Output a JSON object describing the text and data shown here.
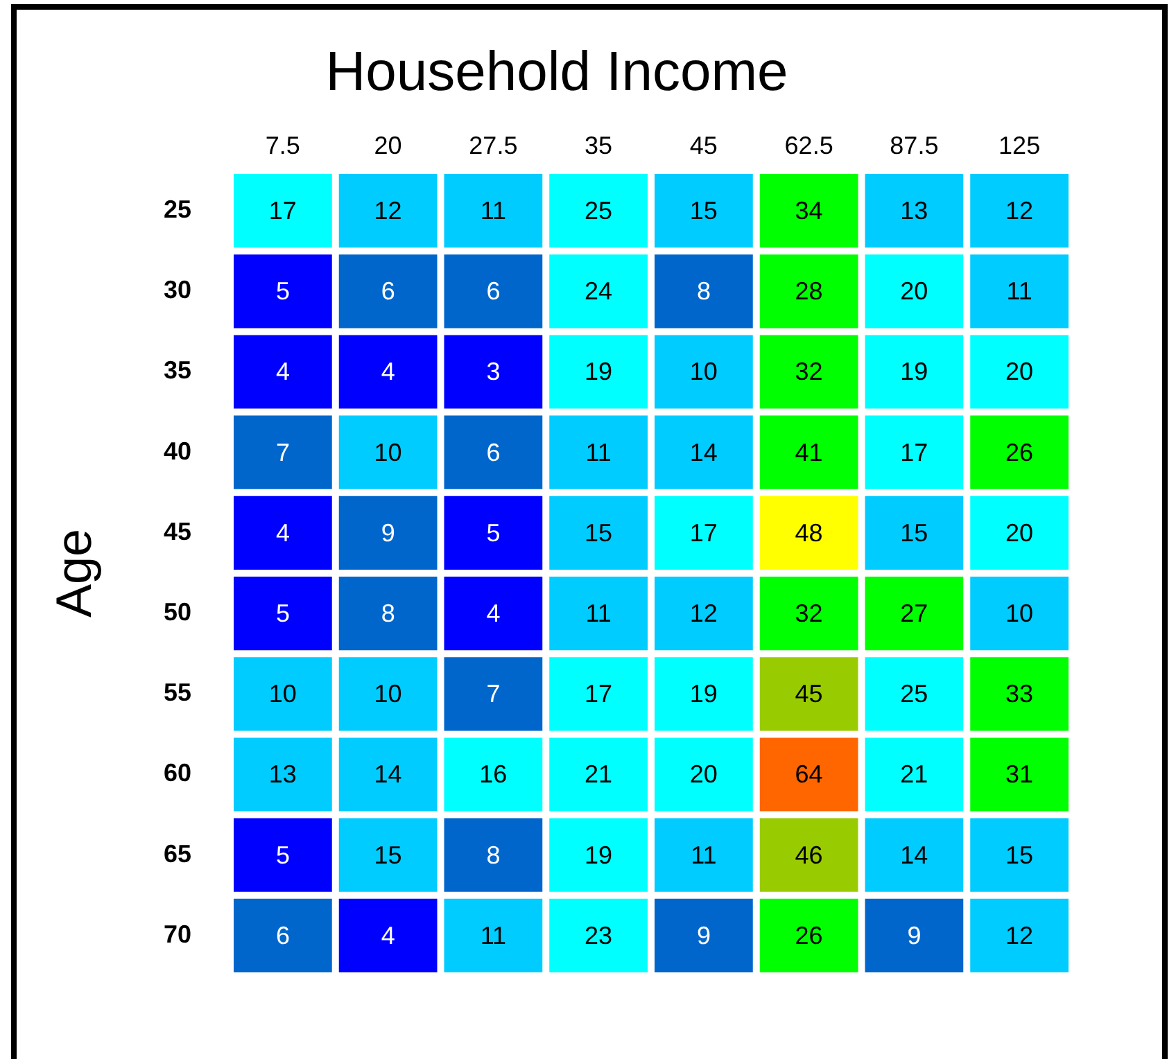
{
  "chart_data": {
    "type": "heatmap",
    "title": "Household Income",
    "ylabel": "Age",
    "categories": [
      "7.5",
      "20",
      "27.5",
      "35",
      "45",
      "62.5",
      "87.5",
      "125"
    ],
    "y_categories": [
      "25",
      "30",
      "35",
      "40",
      "45",
      "50",
      "55",
      "60",
      "65",
      "70"
    ],
    "cells": [
      [
        17,
        12,
        11,
        25,
        15,
        34,
        13,
        12
      ],
      [
        5,
        6,
        6,
        24,
        8,
        28,
        20,
        11
      ],
      [
        4,
        4,
        3,
        19,
        10,
        32,
        19,
        20
      ],
      [
        7,
        10,
        6,
        11,
        14,
        41,
        17,
        26
      ],
      [
        4,
        9,
        5,
        15,
        17,
        48,
        15,
        20
      ],
      [
        5,
        8,
        4,
        11,
        12,
        32,
        27,
        10
      ],
      [
        10,
        10,
        7,
        17,
        19,
        45,
        25,
        33
      ],
      [
        13,
        14,
        16,
        21,
        20,
        64,
        21,
        31
      ],
      [
        5,
        15,
        8,
        19,
        11,
        46,
        14,
        15
      ],
      [
        6,
        4,
        11,
        23,
        9,
        26,
        9,
        12
      ]
    ],
    "colors": [
      [
        "#00ffff",
        "#00ccff",
        "#00ccff",
        "#00ffff",
        "#00ccff",
        "#00ff00",
        "#00ccff",
        "#00ccff"
      ],
      [
        "#0000ff",
        "#0066cc",
        "#0066cc",
        "#00ffff",
        "#0066cc",
        "#00ff00",
        "#00ffff",
        "#00ccff"
      ],
      [
        "#0000ff",
        "#0000ff",
        "#0000ff",
        "#00ffff",
        "#00ccff",
        "#00ff00",
        "#00ffff",
        "#00ffff"
      ],
      [
        "#0066cc",
        "#00ccff",
        "#0066cc",
        "#00ccff",
        "#00ccff",
        "#00ff00",
        "#00ffff",
        "#00ff00"
      ],
      [
        "#0000ff",
        "#0066cc",
        "#0000ff",
        "#00ccff",
        "#00ffff",
        "#ffff00",
        "#00ccff",
        "#00ffff"
      ],
      [
        "#0000ff",
        "#0066cc",
        "#0000ff",
        "#00ccff",
        "#00ccff",
        "#00ff00",
        "#00ff00",
        "#00ccff"
      ],
      [
        "#00ccff",
        "#00ccff",
        "#0066cc",
        "#00ffff",
        "#00ffff",
        "#99cc00",
        "#00ffff",
        "#00ff00"
      ],
      [
        "#00ccff",
        "#00ccff",
        "#00ffff",
        "#00ffff",
        "#00ffff",
        "#ff6600",
        "#00ffff",
        "#00ff00"
      ],
      [
        "#0000ff",
        "#00ccff",
        "#0066cc",
        "#00ffff",
        "#00ccff",
        "#99cc00",
        "#00ccff",
        "#00ccff"
      ],
      [
        "#0066cc",
        "#0000ff",
        "#00ccff",
        "#00ffff",
        "#0066cc",
        "#00ff00",
        "#0066cc",
        "#00ccff"
      ]
    ],
    "data_labels": true
  }
}
